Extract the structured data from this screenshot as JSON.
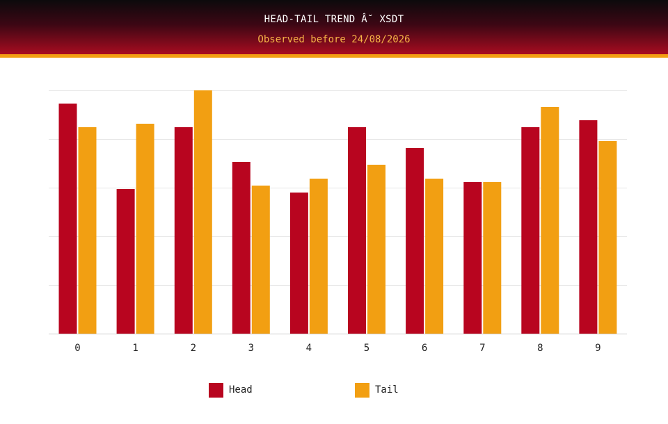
{
  "header": {
    "title": "HEAD-TAIL TREND Â˘ XSDT",
    "subtitle": "Observed before 24/08/2026"
  },
  "colors": {
    "head": "#b8051f",
    "tail": "#f29f12",
    "grid": "#e6e6e6",
    "axis": "#cccccc",
    "tick_text": "#222222"
  },
  "legend": [
    {
      "label": "Head",
      "color": "#b8051f"
    },
    {
      "label": "Tail",
      "color": "#f29f12"
    }
  ],
  "chart_data": {
    "type": "bar",
    "title": "HEAD-TAIL TREND Â˘ XSDT",
    "subtitle": "Observed before 24/08/2026",
    "categories": [
      "0",
      "1",
      "2",
      "3",
      "4",
      "5",
      "6",
      "7",
      "8",
      "9"
    ],
    "series": [
      {
        "name": "Head",
        "values": [
          33.1,
          20.8,
          29.7,
          24.7,
          20.3,
          29.7,
          26.7,
          21.8,
          29.7,
          30.7
        ]
      },
      {
        "name": "Tail",
        "values": [
          29.7,
          30.2,
          35.0,
          21.3,
          22.3,
          24.3,
          22.3,
          21.8,
          32.6,
          27.7
        ]
      }
    ],
    "ylim": [
      0,
      35
    ],
    "grid": true,
    "legend_position": "bottom",
    "xlabel": "",
    "ylabel": ""
  }
}
